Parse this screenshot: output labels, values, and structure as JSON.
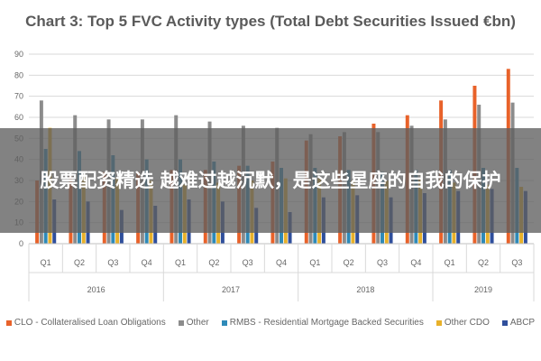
{
  "colors": {
    "clo": "#e8622a",
    "other": "#8c8c8c",
    "rmbs": "#2e8ab8",
    "other_cdo": "#e8b12a",
    "abcp": "#2f4f9c",
    "grid": "#d9d9d9",
    "axis_text": "#666666"
  },
  "chart_data": {
    "type": "bar",
    "title": "Chart 3: Top 5 FVC Activity types (Total Debt Securities Issued €bn)",
    "ylim": [
      0,
      90
    ],
    "yticks": [
      "0",
      "10",
      "20",
      "30",
      "40",
      "50",
      "60",
      "70",
      "80",
      "90"
    ],
    "categories": [
      "Q1",
      "Q2",
      "Q3",
      "Q4",
      "Q1",
      "Q2",
      "Q3",
      "Q4",
      "Q1",
      "Q2",
      "Q3",
      "Q4",
      "Q1",
      "Q2",
      "Q3"
    ],
    "groups": [
      {
        "label": "2016",
        "start": 0,
        "end": 3
      },
      {
        "label": "2017",
        "start": 4,
        "end": 7
      },
      {
        "label": "2018",
        "start": 8,
        "end": 11
      },
      {
        "label": "2019",
        "start": 12,
        "end": 14
      }
    ],
    "grid": true,
    "legend_position": "bottom",
    "series": [
      {
        "name": "CLO - Collateralised Loan Obligations",
        "color_key": "clo",
        "values": [
          30,
          32,
          34,
          34,
          35,
          35,
          37,
          39,
          49,
          51,
          57,
          61,
          68,
          75,
          83
        ]
      },
      {
        "name": "Other",
        "color_key": "other",
        "values": [
          68,
          61,
          59,
          59,
          61,
          58,
          56,
          55,
          52,
          53,
          53,
          56,
          59,
          66,
          67
        ]
      },
      {
        "name": "RMBS - Residential Mortgage Backed Securities",
        "color_key": "rmbs",
        "values": [
          45,
          44,
          42,
          40,
          40,
          39,
          37,
          36,
          36,
          35,
          34,
          35,
          35,
          36,
          36
        ]
      },
      {
        "name": "Other CDO",
        "color_key": "other_cdo",
        "values": [
          55,
          33,
          31,
          30,
          28,
          29,
          30,
          31,
          31,
          30,
          30,
          31,
          29,
          28,
          27
        ]
      },
      {
        "name": "ABCP",
        "color_key": "abcp",
        "values": [
          21,
          20,
          16,
          18,
          21,
          20,
          17,
          15,
          22,
          23,
          22,
          24,
          25,
          26,
          25
        ]
      }
    ]
  },
  "banner": {
    "text": "股票配资精选 越难过越沉默，是这些星座的自我的保护"
  }
}
